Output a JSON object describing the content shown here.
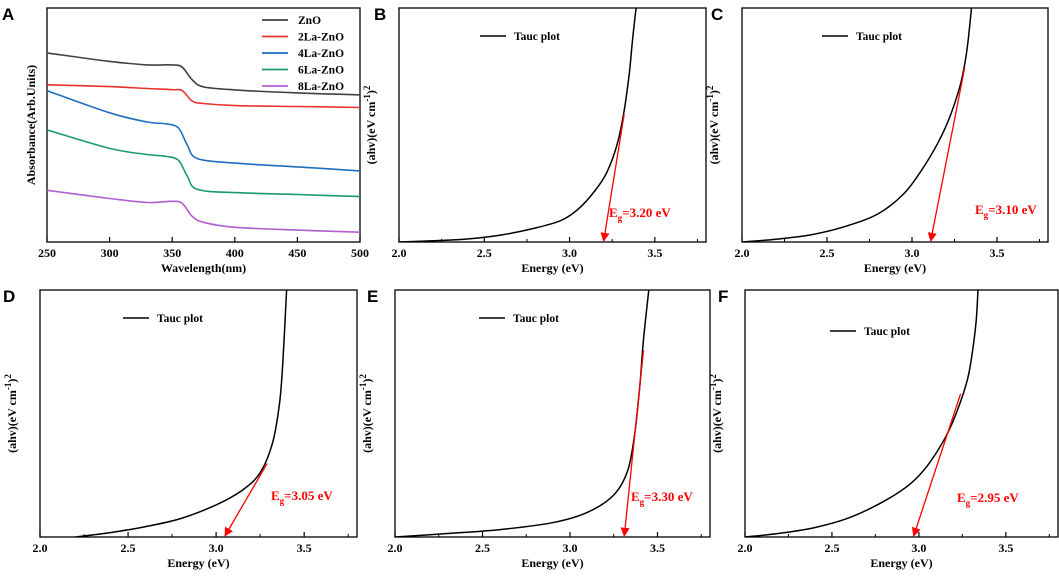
{
  "colors": {
    "axis": "#000000",
    "tauc_line": "#000000",
    "tangent": "#ff0000",
    "eg_text": "#ff0000"
  },
  "chart_data": [
    {
      "id": "A",
      "panel_label": "A",
      "type": "line",
      "title": "",
      "xlabel": "Wavelength(nm)",
      "ylabel": "Absorbance(Arb.Units)",
      "xlim": [
        250,
        500
      ],
      "ylim": [
        0,
        1
      ],
      "xticks": [
        250,
        300,
        350,
        400,
        450,
        500
      ],
      "yticks_shown": false,
      "legend_position": "top-right",
      "series": [
        {
          "name": "ZnO",
          "color": "#404040",
          "points": [
            [
              250,
              0.808
            ],
            [
              300,
              0.772
            ],
            [
              330,
              0.757
            ],
            [
              350,
              0.757
            ],
            [
              358,
              0.747
            ],
            [
              366,
              0.693
            ],
            [
              375,
              0.663
            ],
            [
              400,
              0.65
            ],
            [
              450,
              0.637
            ],
            [
              500,
              0.629
            ]
          ]
        },
        {
          "name": "2La-ZnO",
          "color": "#e8322c",
          "points": [
            [
              250,
              0.672
            ],
            [
              300,
              0.664
            ],
            [
              330,
              0.656
            ],
            [
              350,
              0.651
            ],
            [
              358,
              0.647
            ],
            [
              366,
              0.602
            ],
            [
              375,
              0.592
            ],
            [
              400,
              0.583
            ],
            [
              450,
              0.579
            ],
            [
              500,
              0.575
            ]
          ]
        },
        {
          "name": "4La-ZnO",
          "color": "#1f6fbf",
          "points": [
            [
              250,
              0.647
            ],
            [
              300,
              0.552
            ],
            [
              330,
              0.513
            ],
            [
              345,
              0.505
            ],
            [
              355,
              0.487
            ],
            [
              362,
              0.415
            ],
            [
              370,
              0.357
            ],
            [
              400,
              0.337
            ],
            [
              450,
              0.321
            ],
            [
              500,
              0.304
            ]
          ]
        },
        {
          "name": "6La-ZnO",
          "color": "#1a9a6e",
          "points": [
            [
              250,
              0.479
            ],
            [
              300,
              0.4
            ],
            [
              330,
              0.374
            ],
            [
              345,
              0.366
            ],
            [
              355,
              0.349
            ],
            [
              362,
              0.282
            ],
            [
              370,
              0.225
            ],
            [
              400,
              0.211
            ],
            [
              450,
              0.203
            ],
            [
              500,
              0.194
            ]
          ]
        },
        {
          "name": "8La-ZnO",
          "color": "#b05fd0",
          "points": [
            [
              250,
              0.221
            ],
            [
              300,
              0.186
            ],
            [
              330,
              0.169
            ],
            [
              350,
              0.174
            ],
            [
              358,
              0.165
            ],
            [
              366,
              0.11
            ],
            [
              375,
              0.084
            ],
            [
              400,
              0.063
            ],
            [
              450,
              0.051
            ],
            [
              500,
              0.042
            ]
          ]
        }
      ]
    },
    {
      "id": "B",
      "panel_label": "B",
      "type": "line",
      "xlabel": "Energy (eV)",
      "ylabel_parts": [
        "(ahv)(eV cm",
        "-1",
        ")",
        "2"
      ],
      "xlim": [
        2.0,
        3.8
      ],
      "ylim": [
        0,
        1
      ],
      "xticks": [
        2.0,
        2.5,
        3.0,
        3.5
      ],
      "legend": "Tauc plot",
      "eg_prefix": "E",
      "eg_sub": "g",
      "eg_value": "=3.20 eV",
      "eg": 3.2,
      "tangent": [
        [
          3.2,
          0.0
        ],
        [
          3.32,
          0.545
        ]
      ],
      "series": [
        {
          "name": "Tauc plot",
          "points": [
            [
              2.0,
              0.0
            ],
            [
              2.2,
              0.005
            ],
            [
              2.4,
              0.013
            ],
            [
              2.6,
              0.03
            ],
            [
              2.8,
              0.06
            ],
            [
              2.95,
              0.092
            ],
            [
              3.05,
              0.14
            ],
            [
              3.15,
              0.22
            ],
            [
              3.22,
              0.3
            ],
            [
              3.28,
              0.42
            ],
            [
              3.32,
              0.56
            ],
            [
              3.35,
              0.72
            ],
            [
              3.37,
              0.87
            ],
            [
              3.39,
              1.0
            ]
          ]
        }
      ]
    },
    {
      "id": "C",
      "panel_label": "C",
      "type": "line",
      "xlabel": "Energy (eV)",
      "ylabel_parts": [
        "(ahv)(eV cm",
        "-1",
        ")",
        "2"
      ],
      "xlim": [
        2.0,
        3.8
      ],
      "ylim": [
        0,
        1
      ],
      "xticks": [
        2.0,
        2.5,
        3.0,
        3.5
      ],
      "legend": "Tauc plot",
      "eg_prefix": "E",
      "eg_sub": "g",
      "eg_value": "=3.10 eV",
      "eg": 3.1,
      "tangent": [
        [
          3.11,
          0.0
        ],
        [
          3.31,
          0.745
        ]
      ],
      "series": [
        {
          "name": "Tauc plot",
          "points": [
            [
              2.0,
              0.0
            ],
            [
              2.2,
              0.012
            ],
            [
              2.4,
              0.03
            ],
            [
              2.6,
              0.065
            ],
            [
              2.8,
              0.12
            ],
            [
              2.95,
              0.205
            ],
            [
              3.05,
              0.3
            ],
            [
              3.15,
              0.42
            ],
            [
              3.22,
              0.53
            ],
            [
              3.28,
              0.66
            ],
            [
              3.31,
              0.76
            ],
            [
              3.33,
              0.86
            ],
            [
              3.35,
              1.0
            ]
          ]
        }
      ]
    },
    {
      "id": "D",
      "panel_label": "D",
      "type": "line",
      "xlabel": "Energy (eV)",
      "ylabel_parts": [
        "(ahv)(eV cm",
        "-1",
        ")",
        "2"
      ],
      "xlim": [
        2.0,
        3.8
      ],
      "ylim": [
        0,
        1
      ],
      "xticks": [
        2.0,
        2.5,
        3.0,
        3.5
      ],
      "legend": "Tauc plot",
      "eg_prefix": "E",
      "eg_sub": "g",
      "eg_value": "=3.05 eV",
      "eg": 3.05,
      "tangent": [
        [
          3.05,
          0.0
        ],
        [
          3.29,
          0.298
        ]
      ],
      "series": [
        {
          "name": "Tauc plot",
          "points": [
            [
              2.2,
              0.0
            ],
            [
              2.4,
              0.018
            ],
            [
              2.6,
              0.042
            ],
            [
              2.8,
              0.075
            ],
            [
              3.0,
              0.13
            ],
            [
              3.15,
              0.19
            ],
            [
              3.25,
              0.26
            ],
            [
              3.32,
              0.38
            ],
            [
              3.36,
              0.54
            ],
            [
              3.38,
              0.72
            ],
            [
              3.4,
              1.0
            ]
          ]
        }
      ]
    },
    {
      "id": "E",
      "panel_label": "E",
      "type": "line",
      "xlabel": "Energy (eV)",
      "ylabel_parts": [
        "(ahv)(eV cm",
        "-1",
        ")",
        "2"
      ],
      "xlim": [
        2.0,
        3.8
      ],
      "ylim": [
        0,
        1
      ],
      "xticks": [
        2.0,
        2.5,
        3.0,
        3.5
      ],
      "legend": "Tauc plot",
      "eg_prefix": "E",
      "eg_sub": "g",
      "eg_value": "=3.30 eV",
      "eg": 3.3,
      "tangent": [
        [
          3.31,
          0.0
        ],
        [
          3.42,
          0.755
        ]
      ],
      "series": [
        {
          "name": "Tauc plot",
          "points": [
            [
              2.0,
              0.0
            ],
            [
              2.3,
              0.014
            ],
            [
              2.6,
              0.03
            ],
            [
              2.9,
              0.058
            ],
            [
              3.1,
              0.1
            ],
            [
              3.25,
              0.17
            ],
            [
              3.33,
              0.27
            ],
            [
              3.37,
              0.42
            ],
            [
              3.4,
              0.62
            ],
            [
              3.42,
              0.8
            ],
            [
              3.45,
              1.0
            ]
          ]
        }
      ]
    },
    {
      "id": "F",
      "panel_label": "F",
      "type": "line",
      "xlabel": "Energy (eV)",
      "ylabel_parts": [
        "(ahv)(eV cm",
        "-1",
        ")",
        "2"
      ],
      "xlim": [
        2.0,
        3.8
      ],
      "ylim": [
        0,
        1
      ],
      "xticks": [
        2.0,
        2.5,
        3.0,
        3.5
      ],
      "legend": "Tauc plot",
      "eg_prefix": "E",
      "eg_sub": "g",
      "eg_value": "=2.95 eV",
      "eg": 2.95,
      "tangent": [
        [
          2.97,
          0.0
        ],
        [
          3.24,
          0.58
        ]
      ],
      "series": [
        {
          "name": "Tauc plot",
          "points": [
            [
              2.0,
              0.0
            ],
            [
              2.2,
              0.015
            ],
            [
              2.4,
              0.038
            ],
            [
              2.6,
              0.078
            ],
            [
              2.8,
              0.145
            ],
            [
              2.95,
              0.215
            ],
            [
              3.05,
              0.29
            ],
            [
              3.15,
              0.4
            ],
            [
              3.22,
              0.51
            ],
            [
              3.28,
              0.64
            ],
            [
              3.31,
              0.76
            ],
            [
              3.33,
              0.88
            ],
            [
              3.34,
              1.0
            ]
          ]
        }
      ]
    }
  ]
}
